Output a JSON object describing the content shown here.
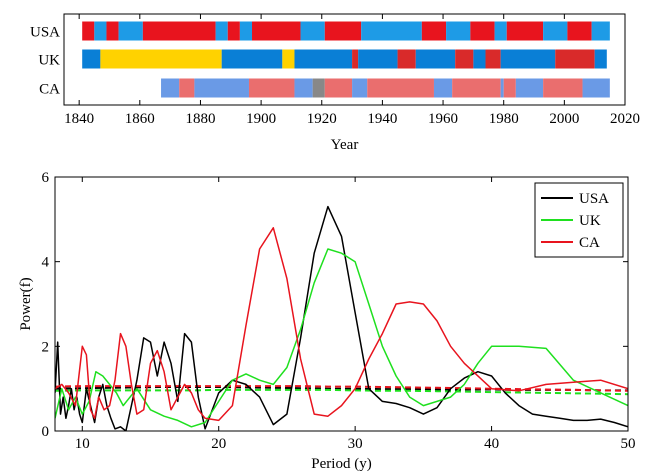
{
  "chart_data": [
    {
      "type": "timeline",
      "xlabel": "Year",
      "xlim": [
        1835,
        2020
      ],
      "xticks": [
        1840,
        1860,
        1880,
        1900,
        1920,
        1940,
        1960,
        1980,
        2000,
        2020
      ],
      "grid": false,
      "rows": [
        {
          "label": "USA",
          "segments": [
            {
              "start": 1841,
              "end": 1845,
              "color": "#e8141e"
            },
            {
              "start": 1845,
              "end": 1849,
              "color": "#1e9be6"
            },
            {
              "start": 1849,
              "end": 1853,
              "color": "#e8141e"
            },
            {
              "start": 1853,
              "end": 1861,
              "color": "#1e9be6"
            },
            {
              "start": 1861,
              "end": 1885,
              "color": "#e8141e"
            },
            {
              "start": 1885,
              "end": 1889,
              "color": "#1e9be6"
            },
            {
              "start": 1889,
              "end": 1893,
              "color": "#e8141e"
            },
            {
              "start": 1893,
              "end": 1897,
              "color": "#1e9be6"
            },
            {
              "start": 1897,
              "end": 1913,
              "color": "#e8141e"
            },
            {
              "start": 1913,
              "end": 1921,
              "color": "#1e9be6"
            },
            {
              "start": 1921,
              "end": 1933,
              "color": "#e8141e"
            },
            {
              "start": 1933,
              "end": 1953,
              "color": "#1e9be6"
            },
            {
              "start": 1953,
              "end": 1961,
              "color": "#e8141e"
            },
            {
              "start": 1961,
              "end": 1969,
              "color": "#1e9be6"
            },
            {
              "start": 1969,
              "end": 1977,
              "color": "#e8141e"
            },
            {
              "start": 1977,
              "end": 1981,
              "color": "#1e9be6"
            },
            {
              "start": 1981,
              "end": 1993,
              "color": "#e8141e"
            },
            {
              "start": 1993,
              "end": 2001,
              "color": "#1e9be6"
            },
            {
              "start": 2001,
              "end": 2009,
              "color": "#e8141e"
            },
            {
              "start": 2009,
              "end": 2015,
              "color": "#1e9be6"
            }
          ]
        },
        {
          "label": "UK",
          "segments": [
            {
              "start": 1841,
              "end": 1847,
              "color": "#0a7fd6"
            },
            {
              "start": 1847,
              "end": 1887,
              "color": "#ffd200"
            },
            {
              "start": 1887,
              "end": 1907,
              "color": "#0a7fd6"
            },
            {
              "start": 1907,
              "end": 1911,
              "color": "#ffd200"
            },
            {
              "start": 1911,
              "end": 1930,
              "color": "#0a7fd6"
            },
            {
              "start": 1930,
              "end": 1932,
              "color": "#d92a2a"
            },
            {
              "start": 1932,
              "end": 1945,
              "color": "#0a7fd6"
            },
            {
              "start": 1945,
              "end": 1951,
              "color": "#d92a2a"
            },
            {
              "start": 1951,
              "end": 1964,
              "color": "#0a7fd6"
            },
            {
              "start": 1964,
              "end": 1970,
              "color": "#d92a2a"
            },
            {
              "start": 1970,
              "end": 1974,
              "color": "#0a7fd6"
            },
            {
              "start": 1974,
              "end": 1979,
              "color": "#d92a2a"
            },
            {
              "start": 1979,
              "end": 1997,
              "color": "#0a7fd6"
            },
            {
              "start": 1997,
              "end": 2010,
              "color": "#d92a2a"
            },
            {
              "start": 2010,
              "end": 2014,
              "color": "#0a7fd6"
            }
          ]
        },
        {
          "label": "CA",
          "segments": [
            {
              "start": 1867,
              "end": 1873,
              "color": "#6a9ae6"
            },
            {
              "start": 1873,
              "end": 1878,
              "color": "#ea6e6e"
            },
            {
              "start": 1878,
              "end": 1896,
              "color": "#6a9ae6"
            },
            {
              "start": 1896,
              "end": 1911,
              "color": "#ea6e6e"
            },
            {
              "start": 1911,
              "end": 1917,
              "color": "#6a9ae6"
            },
            {
              "start": 1917,
              "end": 1921,
              "color": "#888888"
            },
            {
              "start": 1921,
              "end": 1930,
              "color": "#ea6e6e"
            },
            {
              "start": 1930,
              "end": 1935,
              "color": "#6a9ae6"
            },
            {
              "start": 1935,
              "end": 1957,
              "color": "#ea6e6e"
            },
            {
              "start": 1957,
              "end": 1963,
              "color": "#6a9ae6"
            },
            {
              "start": 1963,
              "end": 1979,
              "color": "#ea6e6e"
            },
            {
              "start": 1979,
              "end": 1980,
              "color": "#6a9ae6"
            },
            {
              "start": 1980,
              "end": 1984,
              "color": "#ea6e6e"
            },
            {
              "start": 1984,
              "end": 1993,
              "color": "#6a9ae6"
            },
            {
              "start": 1993,
              "end": 2006,
              "color": "#ea6e6e"
            },
            {
              "start": 2006,
              "end": 2015,
              "color": "#6a9ae6"
            }
          ]
        }
      ]
    },
    {
      "type": "line",
      "xlabel": "Period (y)",
      "ylabel": "Power(f)",
      "xlim": [
        8,
        50
      ],
      "ylim": [
        0,
        6
      ],
      "xticks": [
        10,
        20,
        30,
        40,
        50
      ],
      "yticks": [
        0,
        2,
        4,
        6
      ],
      "legend_position": "top-right",
      "grid": false,
      "series": [
        {
          "name": "USA",
          "color": "#000000",
          "x": [
            8.0,
            8.2,
            8.4,
            8.6,
            8.8,
            9.0,
            9.2,
            9.4,
            9.6,
            9.8,
            10.0,
            10.3,
            10.6,
            10.9,
            11.2,
            11.5,
            11.8,
            12.1,
            12.4,
            12.8,
            13.2,
            13.6,
            14.0,
            14.5,
            15.0,
            15.5,
            16.0,
            16.5,
            17.0,
            17.5,
            18.0,
            18.5,
            19.0,
            20.0,
            21.0,
            22.0,
            23.0,
            24.0,
            25.0,
            26.0,
            27.0,
            28.0,
            29.0,
            30.0,
            31.0,
            32.0,
            33.0,
            34.0,
            35.0,
            36.0,
            37.0,
            38.0,
            39.0,
            40.0,
            41.0,
            42.0,
            43.0,
            44.0,
            45.0,
            46.0,
            47.0,
            48.0,
            49.0,
            50.0
          ],
          "y": [
            0.9,
            2.1,
            0.4,
            0.8,
            0.3,
            0.6,
            1.0,
            0.5,
            0.8,
            0.4,
            0.2,
            1.0,
            0.6,
            0.2,
            0.8,
            1.1,
            0.6,
            0.3,
            0.05,
            0.1,
            0.0,
            0.6,
            1.2,
            2.2,
            2.1,
            1.3,
            2.1,
            1.6,
            0.7,
            2.3,
            2.1,
            0.8,
            0.05,
            0.9,
            1.2,
            1.1,
            0.8,
            0.15,
            0.4,
            2.2,
            4.2,
            5.3,
            4.6,
            2.8,
            1.0,
            0.7,
            0.65,
            0.55,
            0.4,
            0.55,
            1.0,
            1.25,
            1.4,
            1.3,
            0.9,
            0.6,
            0.4,
            0.35,
            0.3,
            0.25,
            0.25,
            0.28,
            0.2,
            0.1
          ],
          "style": "solid"
        },
        {
          "name": "UK",
          "color": "#1fe01f",
          "x": [
            8.0,
            8.5,
            9.0,
            9.5,
            10.0,
            10.5,
            11.0,
            11.5,
            12.0,
            12.5,
            13.0,
            13.5,
            14.0,
            15.0,
            16.0,
            17.0,
            18.0,
            19.0,
            20.0,
            21.0,
            22.0,
            23.0,
            24.0,
            25.0,
            26.0,
            27.0,
            28.0,
            29.0,
            30.0,
            31.0,
            32.0,
            33.0,
            34.0,
            35.0,
            36.0,
            37.0,
            38.0,
            39.0,
            40.0,
            42.0,
            44.0,
            46.0,
            48.0,
            50.0
          ],
          "y": [
            0.3,
            1.0,
            0.5,
            0.8,
            0.4,
            0.7,
            1.4,
            1.3,
            1.1,
            0.9,
            0.6,
            0.8,
            1.0,
            0.5,
            0.35,
            0.25,
            0.1,
            0.2,
            0.7,
            1.2,
            1.35,
            1.2,
            1.1,
            1.5,
            2.4,
            3.5,
            4.3,
            4.2,
            4.0,
            3.0,
            2.0,
            1.3,
            0.8,
            0.6,
            0.7,
            0.8,
            1.1,
            1.6,
            2.0,
            2.0,
            1.95,
            1.2,
            0.9,
            0.6
          ],
          "style": "solid"
        },
        {
          "name": "CA",
          "color": "#e8141e",
          "x": [
            8.0,
            8.5,
            9.0,
            9.5,
            10.0,
            10.3,
            10.6,
            10.9,
            11.2,
            11.6,
            12.0,
            12.4,
            12.8,
            13.2,
            13.6,
            14.0,
            14.5,
            15.0,
            15.5,
            16.0,
            16.5,
            17.0,
            17.5,
            18.0,
            18.5,
            19.0,
            20.0,
            21.0,
            22.0,
            23.0,
            24.0,
            25.0,
            26.0,
            27.0,
            28.0,
            29.0,
            30.0,
            31.0,
            32.0,
            33.0,
            34.0,
            35.0,
            36.0,
            37.0,
            38.0,
            40.0,
            42.0,
            44.0,
            46.0,
            48.0,
            50.0
          ],
          "y": [
            1.0,
            1.1,
            0.9,
            0.6,
            2.0,
            1.8,
            0.5,
            0.3,
            0.8,
            0.5,
            0.6,
            1.2,
            2.3,
            2.0,
            1.1,
            0.4,
            0.5,
            1.6,
            1.9,
            1.4,
            0.5,
            0.8,
            1.1,
            0.9,
            0.5,
            0.3,
            0.25,
            0.6,
            2.5,
            4.3,
            4.8,
            3.6,
            1.7,
            0.4,
            0.35,
            0.6,
            1.0,
            1.7,
            2.3,
            3.0,
            3.05,
            3.0,
            2.6,
            2.0,
            1.6,
            1.0,
            0.95,
            1.1,
            1.15,
            1.2,
            1.0
          ],
          "style": "solid"
        },
        {
          "name": "",
          "color": "#000000",
          "x": [
            8,
            10,
            12,
            14,
            16,
            18,
            20,
            22,
            24,
            26,
            28,
            30,
            32,
            34,
            36,
            38,
            40,
            42,
            44,
            46,
            48,
            50
          ],
          "y": [
            1.0,
            1.01,
            1.02,
            1.03,
            1.04,
            1.04,
            1.04,
            1.03,
            1.02,
            1.01,
            1.0,
            1.0,
            0.99,
            0.99,
            0.98,
            0.98,
            0.98,
            0.97,
            0.97,
            0.97,
            0.96,
            0.96
          ],
          "style": "dashed"
        },
        {
          "name": "",
          "color": "#1fe01f",
          "x": [
            8,
            10,
            12,
            14,
            16,
            18,
            20,
            22,
            24,
            26,
            28,
            30,
            32,
            34,
            36,
            38,
            40,
            42,
            44,
            46,
            48,
            50
          ],
          "y": [
            0.95,
            0.96,
            0.96,
            0.96,
            0.96,
            0.96,
            0.97,
            0.97,
            0.97,
            0.97,
            0.97,
            0.96,
            0.95,
            0.95,
            0.94,
            0.93,
            0.92,
            0.91,
            0.9,
            0.89,
            0.88,
            0.87
          ],
          "style": "dashed"
        },
        {
          "name": "",
          "color": "#e8141e",
          "x": [
            8,
            10,
            12,
            14,
            16,
            18,
            20,
            22,
            24,
            26,
            28,
            30,
            32,
            34,
            36,
            38,
            40,
            42,
            44,
            46,
            48,
            50
          ],
          "y": [
            1.05,
            1.06,
            1.06,
            1.06,
            1.06,
            1.06,
            1.06,
            1.06,
            1.06,
            1.06,
            1.05,
            1.05,
            1.04,
            1.03,
            1.02,
            1.01,
            1.0,
            0.99,
            0.98,
            0.97,
            0.96,
            0.95
          ],
          "style": "dashed"
        }
      ]
    }
  ]
}
